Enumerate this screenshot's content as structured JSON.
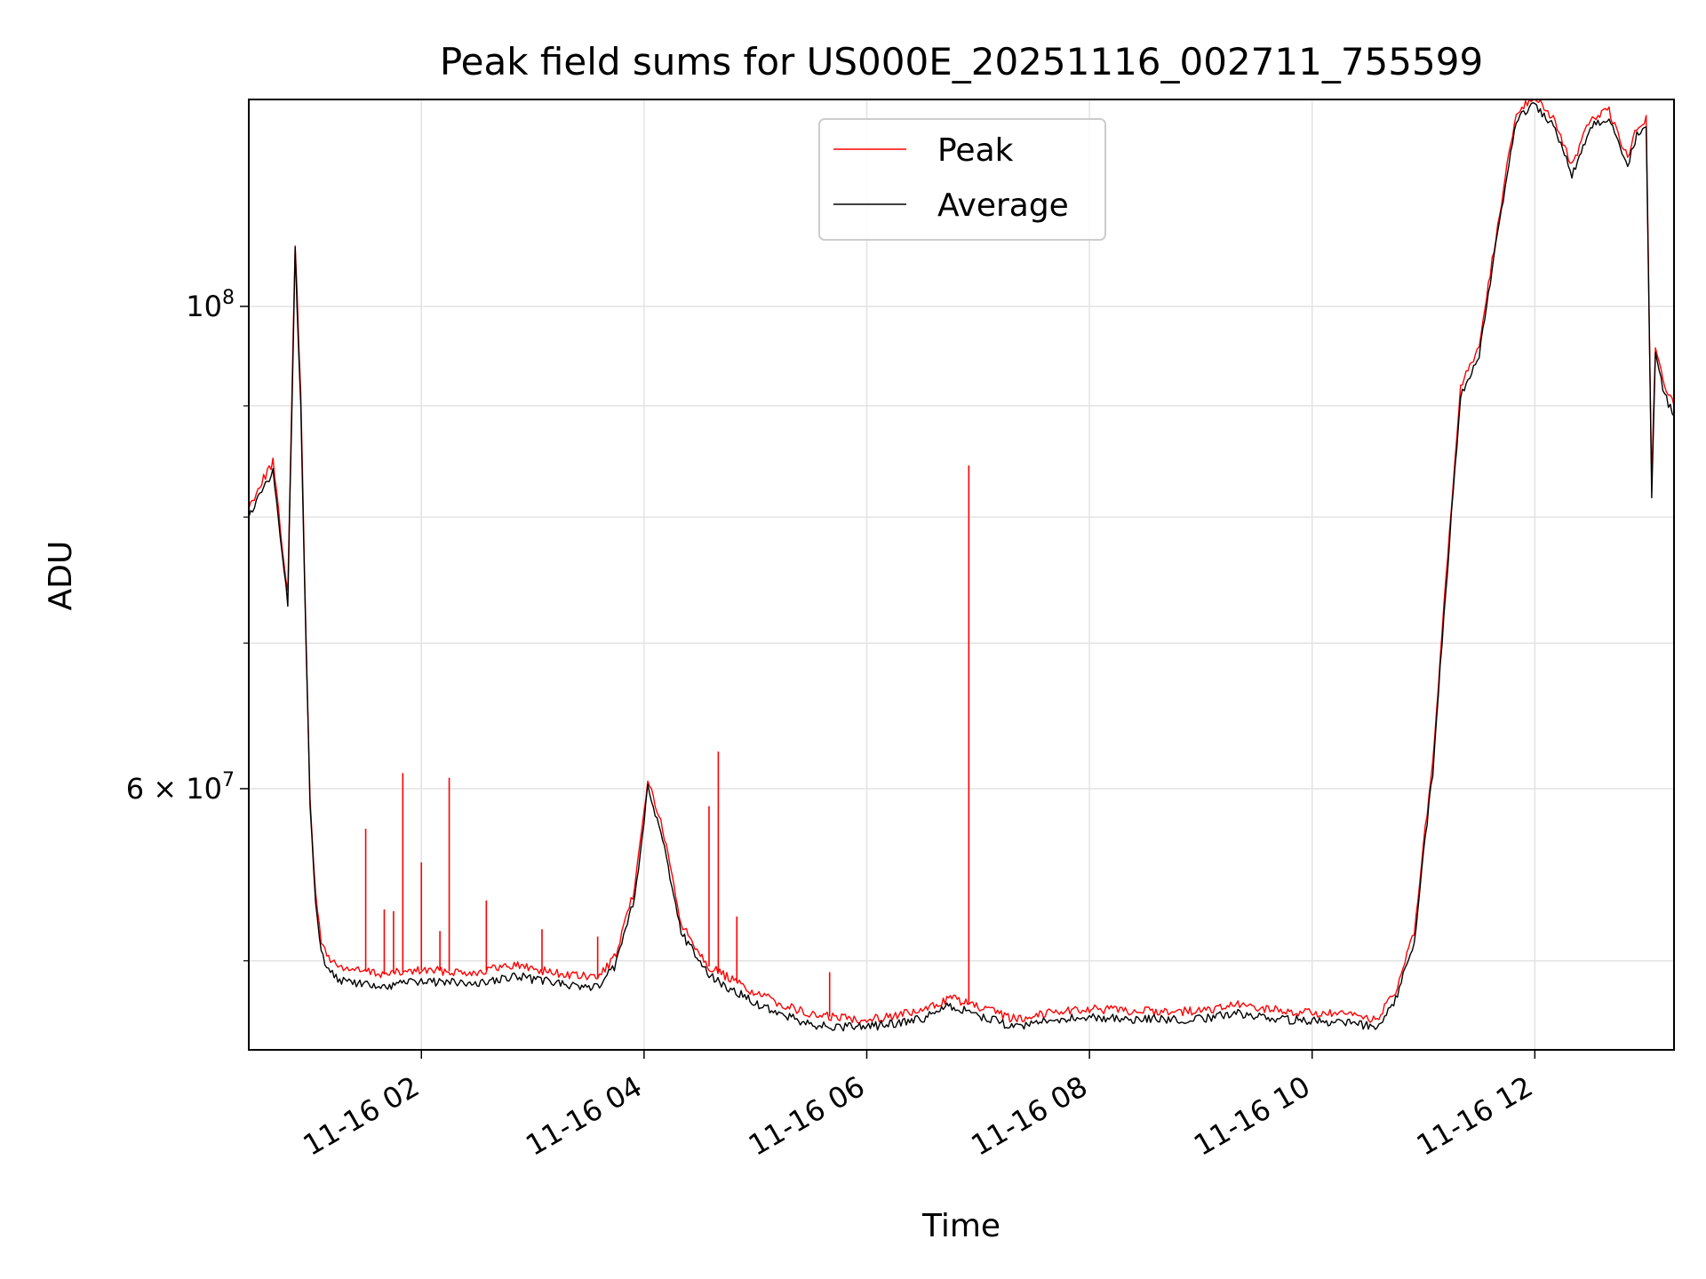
{
  "chart_data": {
    "type": "line",
    "title": "Peak field sums for US000E_20251116_002711_755599",
    "xlabel": "Time",
    "ylabel": "ADU",
    "yscale": "log",
    "xlim": [
      "2025-11-16T00:27",
      "2025-11-16T13:15"
    ],
    "ylim": [
      45500000,
      124500000
    ],
    "x_ticks": [
      "11-16 02",
      "11-16 04",
      "11-16 06",
      "11-16 08",
      "11-16 10",
      "11-16 12"
    ],
    "y_major_ticks": [
      {
        "value": 60000000,
        "label": "6 × 10^7"
      },
      {
        "value": 100000000,
        "label": "10^8"
      }
    ],
    "y_minor_ticks": [
      50000000,
      70000000,
      80000000,
      90000000
    ],
    "grid": true,
    "legend": {
      "placement": "upper center",
      "entries": [
        "Peak",
        "Average"
      ]
    },
    "colors": {
      "Peak": "#ff0000",
      "Average": "#000000"
    },
    "series": [
      {
        "name": "Average",
        "x": [
          "2025-11-16T00:27",
          "2025-11-16T00:33",
          "2025-11-16T00:40",
          "2025-11-16T00:45",
          "2025-11-16T00:48",
          "2025-11-16T00:52",
          "2025-11-16T00:55",
          "2025-11-16T00:57",
          "2025-11-16T01:00",
          "2025-11-16T01:03",
          "2025-11-16T01:06",
          "2025-11-16T01:10",
          "2025-11-16T01:15",
          "2025-11-16T01:25",
          "2025-11-16T01:40",
          "2025-11-16T02:00",
          "2025-11-16T02:30",
          "2025-11-16T02:50",
          "2025-11-16T03:15",
          "2025-11-16T03:35",
          "2025-11-16T03:45",
          "2025-11-16T03:55",
          "2025-11-16T04:02",
          "2025-11-16T04:10",
          "2025-11-16T04:20",
          "2025-11-16T04:35",
          "2025-11-16T05:00",
          "2025-11-16T05:30",
          "2025-11-16T06:00",
          "2025-11-16T06:30",
          "2025-11-16T06:45",
          "2025-11-16T07:00",
          "2025-11-16T07:20",
          "2025-11-16T07:40",
          "2025-11-16T08:00",
          "2025-11-16T08:30",
          "2025-11-16T09:00",
          "2025-11-16T09:20",
          "2025-11-16T09:45",
          "2025-11-16T10:20",
          "2025-11-16T10:35",
          "2025-11-16T10:45",
          "2025-11-16T10:55",
          "2025-11-16T11:00",
          "2025-11-16T11:05",
          "2025-11-16T11:10",
          "2025-11-16T11:15",
          "2025-11-16T11:20",
          "2025-11-16T11:30",
          "2025-11-16T11:40",
          "2025-11-16T11:50",
          "2025-11-16T12:00",
          "2025-11-16T12:10",
          "2025-11-16T12:20",
          "2025-11-16T12:30",
          "2025-11-16T12:40",
          "2025-11-16T12:50",
          "2025-11-16T12:55",
          "2025-11-16T13:00",
          "2025-11-16T13:03",
          "2025-11-16T13:05",
          "2025-11-16T13:10",
          "2025-11-16T13:15"
        ],
        "y": [
          80000000,
          82000000,
          84000000,
          77000000,
          73000000,
          106000000,
          90000000,
          75000000,
          59000000,
          53000000,
          50500000,
          49500000,
          49000000,
          48800000,
          48700000,
          48900000,
          48800000,
          49200000,
          48800000,
          48600000,
          49800000,
          53500000,
          60000000,
          57000000,
          51500000,
          49200000,
          47800000,
          46700000,
          46600000,
          47000000,
          47700000,
          47200000,
          46600000,
          47000000,
          47100000,
          47000000,
          47000000,
          47300000,
          47000000,
          46800000,
          46600000,
          48000000,
          51000000,
          56000000,
          61000000,
          70000000,
          80000000,
          91000000,
          95000000,
          108000000,
          122000000,
          124000000,
          121000000,
          115000000,
          121000000,
          122000000,
          116000000,
          120000000,
          121000000,
          82000000,
          95000000,
          91000000,
          89000000
        ]
      },
      {
        "name": "Peak",
        "x": [
          "2025-11-16T00:27",
          "2025-11-16T00:33",
          "2025-11-16T00:40",
          "2025-11-16T00:45",
          "2025-11-16T00:48",
          "2025-11-16T00:52",
          "2025-11-16T00:55",
          "2025-11-16T00:57",
          "2025-11-16T01:00",
          "2025-11-16T01:03",
          "2025-11-16T01:06",
          "2025-11-16T01:10",
          "2025-11-16T01:15",
          "2025-11-16T01:25",
          "2025-11-16T01:40",
          "2025-11-16T02:00",
          "2025-11-16T02:30",
          "2025-11-16T02:50",
          "2025-11-16T03:15",
          "2025-11-16T03:35",
          "2025-11-16T03:45",
          "2025-11-16T03:55",
          "2025-11-16T04:02",
          "2025-11-16T04:10",
          "2025-11-16T04:20",
          "2025-11-16T04:35",
          "2025-11-16T05:00",
          "2025-11-16T05:30",
          "2025-11-16T06:00",
          "2025-11-16T06:30",
          "2025-11-16T06:45",
          "2025-11-16T07:00",
          "2025-11-16T07:20",
          "2025-11-16T07:40",
          "2025-11-16T08:00",
          "2025-11-16T08:30",
          "2025-11-16T09:00",
          "2025-11-16T09:20",
          "2025-11-16T09:45",
          "2025-11-16T10:20",
          "2025-11-16T10:35",
          "2025-11-16T10:45",
          "2025-11-16T10:55",
          "2025-11-16T11:00",
          "2025-11-16T11:05",
          "2025-11-16T11:10",
          "2025-11-16T11:15",
          "2025-11-16T11:20",
          "2025-11-16T11:30",
          "2025-11-16T11:40",
          "2025-11-16T11:50",
          "2025-11-16T12:00",
          "2025-11-16T12:10",
          "2025-11-16T12:20",
          "2025-11-16T12:30",
          "2025-11-16T12:40",
          "2025-11-16T12:50",
          "2025-11-16T12:55",
          "2025-11-16T13:00",
          "2025-11-16T13:03",
          "2025-11-16T13:05",
          "2025-11-16T13:10",
          "2025-11-16T13:15"
        ],
        "y": [
          80800000,
          82800000,
          84800000,
          77700000,
          73700000,
          107000000,
          90900000,
          75700000,
          59600000,
          53500000,
          51000000,
          50200000,
          49700000,
          49500000,
          49300000,
          49500000,
          49400000,
          49800000,
          49300000,
          49100000,
          50300000,
          54000000,
          60600000,
          57500000,
          52000000,
          49700000,
          48300000,
          47200000,
          47000000,
          47400000,
          48100000,
          47600000,
          47000000,
          47400000,
          47500000,
          47400000,
          47400000,
          47700000,
          47400000,
          47200000,
          47000000,
          48400000,
          51500000,
          56500000,
          61600000,
          70700000,
          80700000,
          91900000,
          95900000,
          109000000,
          123000000,
          125000000,
          122000000,
          116000000,
          122000000,
          123000000,
          117000000,
          121000000,
          122000000,
          82800000,
          96000000,
          92000000,
          90000000
        ]
      }
    ],
    "peak_spikes": [
      {
        "x": "2025-11-16T01:30",
        "y": 57500000
      },
      {
        "x": "2025-11-16T01:40",
        "y": 52800000
      },
      {
        "x": "2025-11-16T01:45",
        "y": 52700000
      },
      {
        "x": "2025-11-16T01:50",
        "y": 61000000
      },
      {
        "x": "2025-11-16T02:00",
        "y": 55500000
      },
      {
        "x": "2025-11-16T02:10",
        "y": 51600000
      },
      {
        "x": "2025-11-16T02:15",
        "y": 60700000
      },
      {
        "x": "2025-11-16T02:35",
        "y": 53300000
      },
      {
        "x": "2025-11-16T03:05",
        "y": 51700000
      },
      {
        "x": "2025-11-16T03:35",
        "y": 51300000
      },
      {
        "x": "2025-11-16T04:35",
        "y": 58900000
      },
      {
        "x": "2025-11-16T04:40",
        "y": 62400000
      },
      {
        "x": "2025-11-16T04:50",
        "y": 52400000
      },
      {
        "x": "2025-11-16T05:40",
        "y": 49400000
      },
      {
        "x": "2025-11-16T06:55",
        "y": 84500000
      }
    ]
  }
}
